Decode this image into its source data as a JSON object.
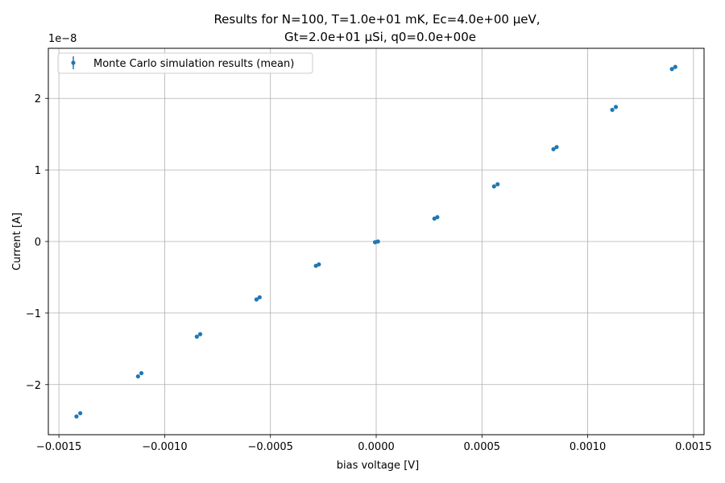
{
  "chart_data": {
    "type": "scatter",
    "title_line1": "Results for N=100, T=1.0e+01 mK, Ec=4.0e+00 μeV,",
    "title_line2": "Gt=2.0e+01 μSi, q0=0.0e+00e",
    "xlabel": "bias voltage [V]",
    "ylabel": "Current [A]",
    "y_offset_label": "1e−8",
    "y_scale": 1e-08,
    "xlim": [
      -0.00155,
      0.00155
    ],
    "ylim": [
      -2.7e-08,
      2.7e-08
    ],
    "x_ticks": [
      -0.0015,
      -0.001,
      -0.0005,
      0,
      0.0005,
      0.001,
      0.0015
    ],
    "x_tick_labels": [
      "−0.0015",
      "−0.0010",
      "−0.0005",
      "0.0000",
      "0.0005",
      "0.0010",
      "0.0015"
    ],
    "y_ticks": [
      -2e-08,
      -1e-08,
      0,
      1e-08,
      2e-08
    ],
    "y_tick_labels": [
      "−2",
      "−1",
      "0",
      "1",
      "2"
    ],
    "grid": true,
    "legend_position": "top-left",
    "series": [
      {
        "name": "Monte Carlo simulation results (mean)",
        "color": "#1f77b4",
        "marker": "point",
        "x": [
          -0.001417,
          -0.001399,
          -0.001126,
          -0.00111,
          -0.000848,
          -0.000832,
          -0.000566,
          -0.000551,
          -0.000285,
          -0.000271,
          -5.4e-06,
          8.3e-06,
          0.000275,
          0.000289,
          0.000557,
          0.000574,
          0.000838,
          0.000853,
          0.001116,
          0.001133,
          0.001398,
          0.001414
        ],
        "y": [
          -2.445e-08,
          -2.4e-08,
          -1.885e-08,
          -1.84e-08,
          -1.33e-08,
          -1.295e-08,
          -8.1e-09,
          -7.8e-09,
          -3.4e-09,
          -3.2e-09,
          -1e-10,
          0.0,
          3.2e-09,
          3.4e-09,
          7.7e-09,
          8e-09,
          1.29e-08,
          1.32e-08,
          1.84e-08,
          1.88e-08,
          2.41e-08,
          2.44e-08
        ]
      }
    ]
  }
}
